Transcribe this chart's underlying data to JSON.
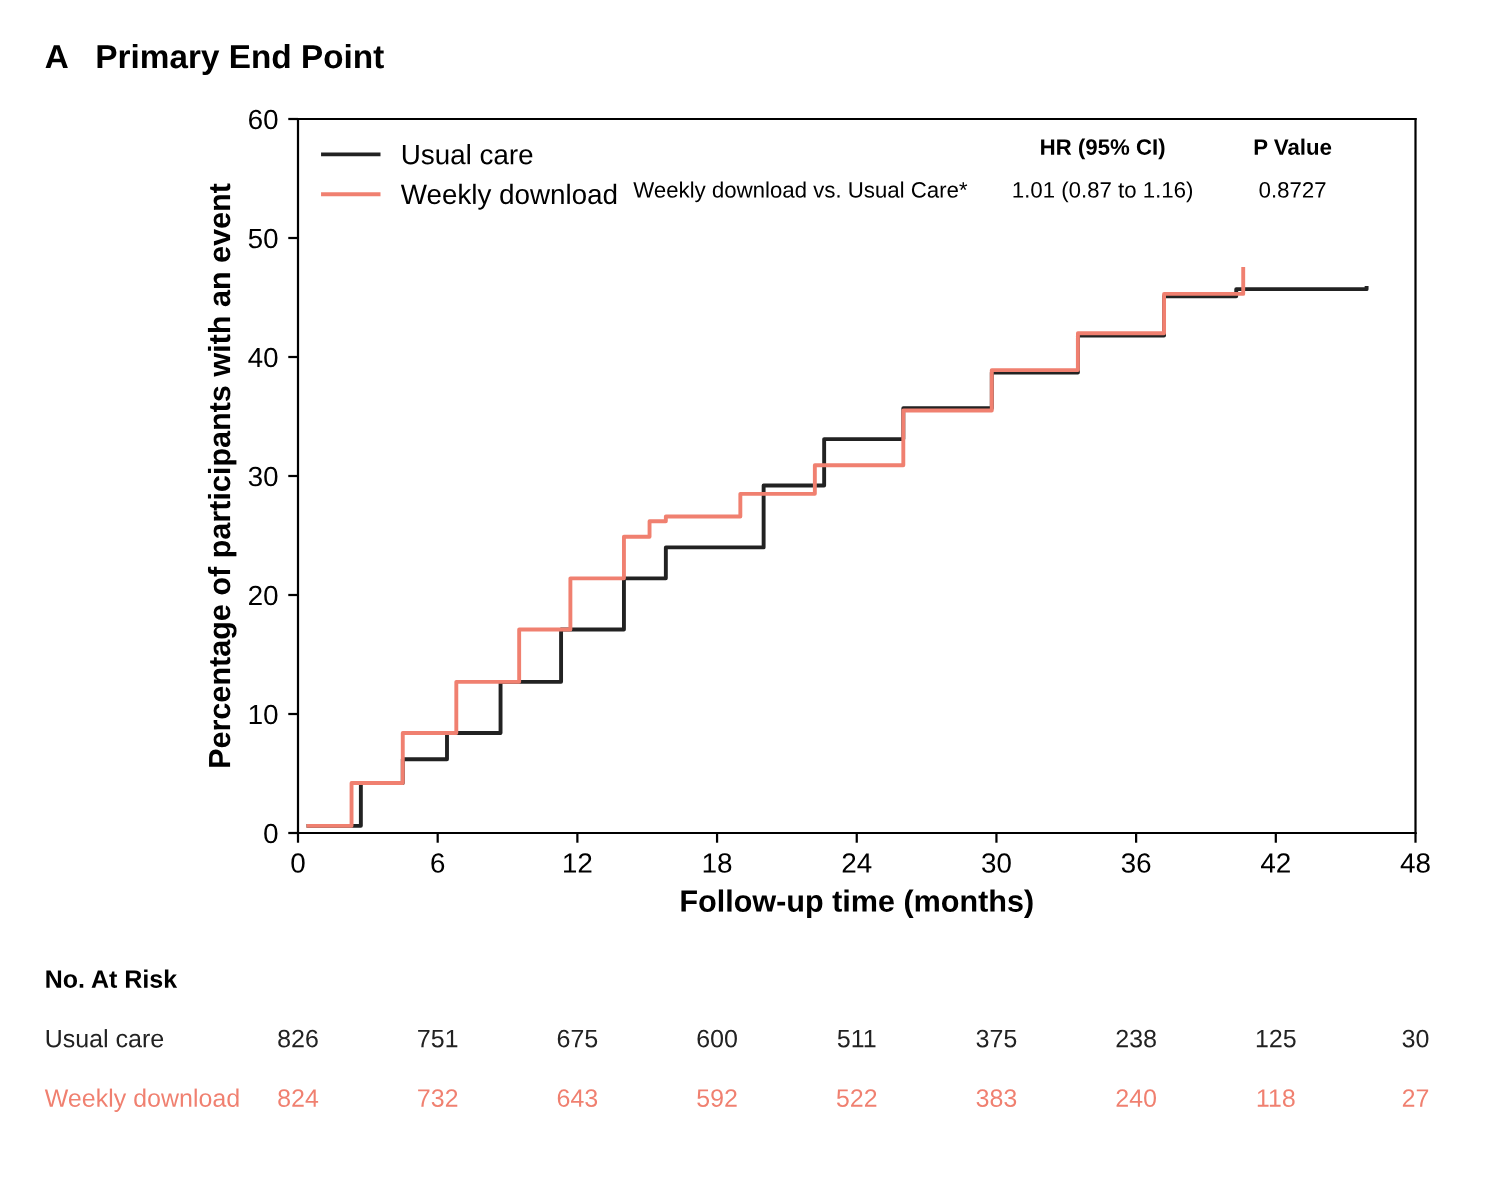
{
  "chart_data": {
    "type": "step",
    "title": "A   Primary End Point",
    "xlabel": "Follow-up time (months)",
    "ylabel": "Percentage of participants with an event",
    "xlim": [
      0,
      48
    ],
    "xticks": [
      0,
      6,
      12,
      18,
      24,
      30,
      36,
      42,
      48
    ],
    "ylim": [
      0,
      60
    ],
    "yticks": [
      0,
      10,
      20,
      30,
      40,
      50,
      60
    ],
    "grid": false,
    "legend": "top left",
    "line_style": "solid",
    "marker": "none",
    "series": [
      {
        "name": "Usual care",
        "color": "#222222",
        "x": [
          0.45,
          2.7,
          4.5,
          6.4,
          8.7,
          11.3,
          14,
          15.8,
          20,
          22.6,
          26,
          29.8,
          33.5,
          37.2,
          40.3,
          45.9
        ],
        "values": [
          0.6,
          4.2,
          6.2,
          8.4,
          12.7,
          17.1,
          21.4,
          24.0,
          29.2,
          33.1,
          35.7,
          38.7,
          41.8,
          45.1,
          45.7,
          45.8
        ]
      },
      {
        "name": "Weekly download",
        "color": "#f08070",
        "x": [
          0.45,
          2.3,
          4.5,
          6.8,
          9.5,
          11.7,
          14,
          15.1,
          15.8,
          19,
          22.2,
          26,
          29.8,
          33.5,
          37.2,
          40.6
        ],
        "values": [
          0.6,
          4.2,
          8.4,
          12.7,
          17.1,
          21.4,
          24.9,
          26.2,
          26.6,
          28.5,
          30.9,
          35.5,
          38.9,
          42.0,
          45.3,
          47.4
        ]
      }
    ],
    "annotations": [
      "HR (95% CI)",
      "P Value",
      "Weekly download vs. Usual Care*",
      "1.01 (0.87 to 1.16)",
      "0.8727",
      "No. At Risk",
      "Usual care",
      "826",
      "751",
      "675",
      "600",
      "511",
      "375",
      "238",
      "125",
      "30",
      "Weekly download",
      "824",
      "732",
      "643",
      "592",
      "522",
      "383",
      "240",
      "118",
      "27"
    ]
  }
}
